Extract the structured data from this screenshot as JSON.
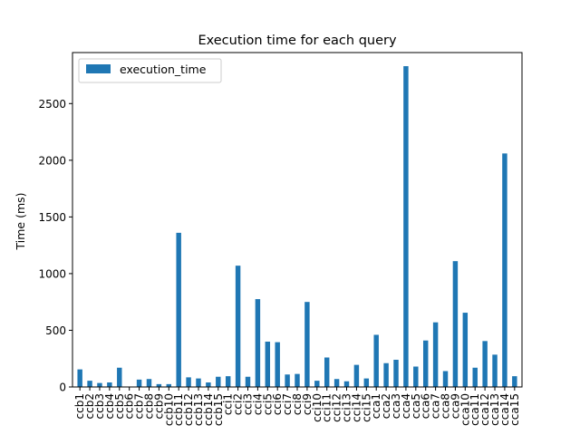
{
  "chart_data": {
    "type": "bar",
    "title": "Execution time for each query",
    "xlabel": "",
    "ylabel": "Time (ms)",
    "ylim": [
      0,
      2950
    ],
    "yticks": [
      0,
      500,
      1000,
      1500,
      2000,
      2500
    ],
    "legend": {
      "placement": "top-left",
      "entries": [
        "execution_time"
      ]
    },
    "grid": false,
    "colors": {
      "bar": "#1f77b4"
    },
    "categories": [
      "ccb1",
      "ccb2",
      "ccb3",
      "ccb4",
      "ccb5",
      "ccb6",
      "ccb7",
      "ccb8",
      "ccb9",
      "ccb10",
      "ccb11",
      "ccb12",
      "ccb13",
      "ccb14",
      "ccb15",
      "cci1",
      "cci2",
      "cci3",
      "cci4",
      "cci5",
      "cci6",
      "cci7",
      "cci8",
      "cci9",
      "cci10",
      "cci11",
      "cci12",
      "cci13",
      "cci14",
      "cci15",
      "cca1",
      "cca2",
      "cca3",
      "cca4",
      "cca5",
      "cca6",
      "cca7",
      "cca8",
      "cca9",
      "cca10",
      "cca11",
      "cca12",
      "cca13",
      "cca14",
      "cca15"
    ],
    "series": [
      {
        "name": "execution_time",
        "values": [
          155,
          55,
          35,
          40,
          170,
          0,
          65,
          70,
          25,
          25,
          1360,
          85,
          75,
          40,
          90,
          95,
          1070,
          90,
          775,
          400,
          395,
          110,
          115,
          750,
          55,
          260,
          70,
          50,
          195,
          75,
          460,
          210,
          240,
          2830,
          180,
          410,
          570,
          140,
          1110,
          655,
          170,
          405,
          285,
          2060,
          95
        ]
      }
    ]
  }
}
